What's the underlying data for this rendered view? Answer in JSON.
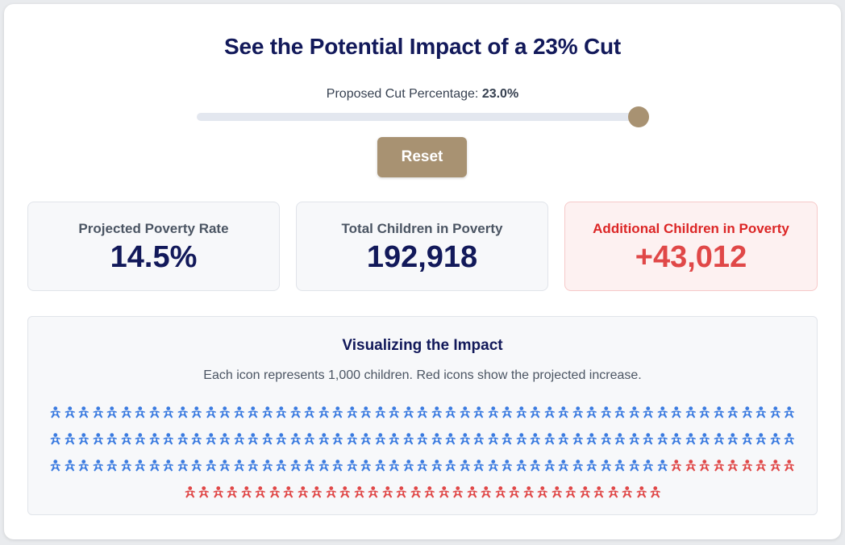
{
  "header": {
    "title": "See the Potential Impact of a 23% Cut"
  },
  "slider": {
    "label": "Proposed Cut Percentage:",
    "value_text": "23.0%",
    "fraction": 0.985
  },
  "reset": {
    "label": "Reset"
  },
  "stats": [
    {
      "label": "Projected Poverty Rate",
      "value": "14.5%"
    },
    {
      "label": "Total Children in Poverty",
      "value": "192,918"
    },
    {
      "label": "Additional Children in Poverty",
      "value": "+43,012"
    }
  ],
  "visualization": {
    "title": "Visualizing the Impact",
    "subtitle": "Each icon represents 1,000 children. Red icons show the projected increase.",
    "baseline_icons": 150,
    "added_icons": 43,
    "baseline_color": "#3b7be0",
    "added_color": "#e04848",
    "icon": "child-icon"
  },
  "colors": {
    "accent": "#a89272",
    "heading": "#12195a",
    "alert": "#e04848"
  }
}
